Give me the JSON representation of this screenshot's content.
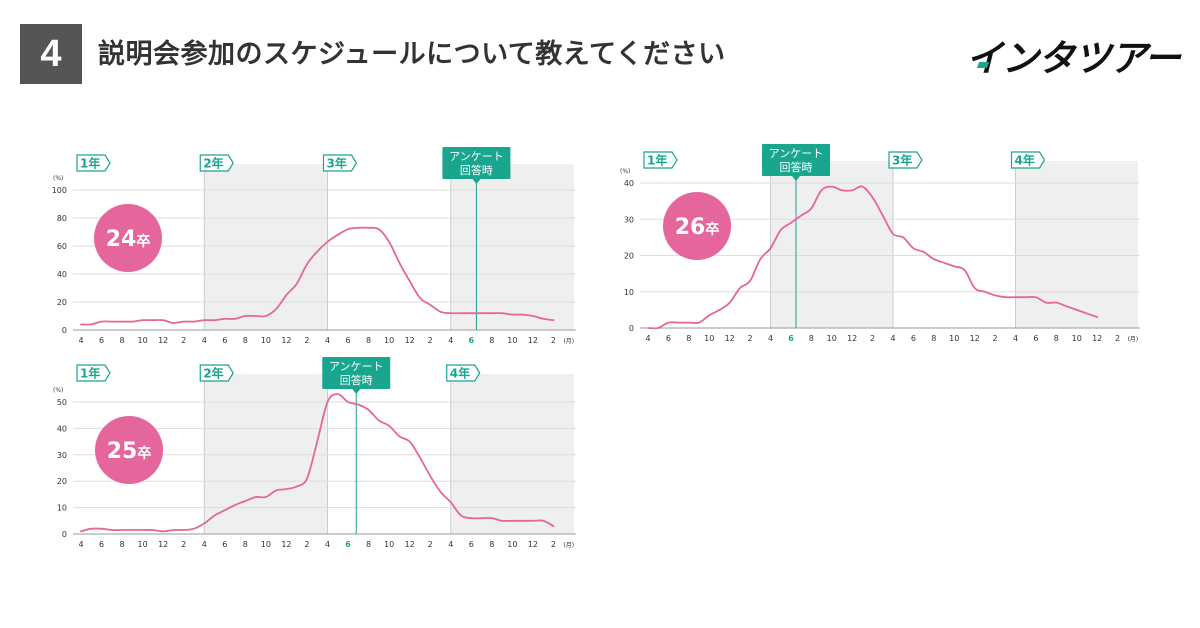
{
  "header": {
    "number": "4",
    "title": "説明会参加のスケジュールについて教えてください",
    "logo": "インタツアー"
  },
  "colors": {
    "line": "#e4669c",
    "accent": "#1aa58f",
    "badge": "#e4669c",
    "shade": "#efefef",
    "grid": "#dddddd"
  },
  "chart_data": [
    {
      "type": "line",
      "badge_num": "24",
      "badge_suffix": "卒",
      "ylabel": "(%)",
      "ylim": [
        0,
        100
      ],
      "yticks": [
        0,
        20,
        40,
        60,
        80,
        100
      ],
      "xlim": [
        0,
        48
      ],
      "x_tick_labels": [
        "4",
        "6",
        "8",
        "10",
        "12",
        "2",
        "4",
        "6",
        "8",
        "10",
        "12",
        "2",
        "4",
        "6",
        "8",
        "10",
        "12",
        "2",
        "4",
        "6",
        "8",
        "10",
        "12",
        "2"
      ],
      "x_unit": "(月)",
      "highlight_tick": 19,
      "year_labels": [
        "1年",
        "2年",
        "3年",
        "4年"
      ],
      "shaded_years": [
        1,
        3
      ],
      "annotation": {
        "line1": "アンケート",
        "line2": "回答時",
        "x": 38.5
      },
      "x": [
        0,
        1,
        2,
        3,
        4,
        5,
        6,
        7,
        8,
        9,
        10,
        11,
        12,
        13,
        14,
        15,
        16,
        17,
        18,
        19,
        20,
        21,
        22,
        23,
        24,
        25,
        26,
        27,
        28,
        29,
        30,
        31,
        32,
        33,
        34,
        35,
        36,
        37,
        38,
        39,
        40,
        41,
        42,
        43,
        44,
        45,
        46
      ],
      "y": [
        4,
        4,
        6,
        6,
        6,
        6,
        7,
        7,
        7,
        5,
        6,
        6,
        7,
        7,
        8,
        8,
        10,
        10,
        10,
        15,
        25,
        33,
        47,
        56,
        63,
        68,
        72,
        73,
        73,
        72,
        63,
        48,
        35,
        23,
        18,
        13,
        12,
        12,
        12,
        12,
        12,
        12,
        11,
        11,
        10,
        8,
        7
      ]
    },
    {
      "type": "line",
      "badge_num": "25",
      "badge_suffix": "卒",
      "ylabel": "(%)",
      "ylim": [
        0,
        50
      ],
      "yticks": [
        0,
        10,
        20,
        30,
        40,
        50
      ],
      "xlim": [
        0,
        48
      ],
      "x_tick_labels": [
        "4",
        "6",
        "8",
        "10",
        "12",
        "2",
        "4",
        "6",
        "8",
        "10",
        "12",
        "2",
        "4",
        "6",
        "8",
        "10",
        "12",
        "2",
        "4",
        "6",
        "8",
        "10",
        "12",
        "2"
      ],
      "x_unit": "(月)",
      "highlight_tick": 13,
      "year_labels": [
        "1年",
        "2年",
        "3年",
        "4年"
      ],
      "shaded_years": [
        1,
        3
      ],
      "annotation": {
        "line1": "アンケート",
        "line2": "回答時",
        "x": 26.8
      },
      "x": [
        0,
        1,
        2,
        3,
        4,
        5,
        6,
        7,
        8,
        9,
        10,
        11,
        12,
        13,
        14,
        15,
        16,
        17,
        18,
        19,
        20,
        21,
        22,
        23,
        24,
        25,
        26,
        27,
        28,
        29,
        30,
        31,
        32,
        33,
        34,
        35,
        36,
        37,
        38,
        39,
        40,
        41,
        42,
        43,
        44,
        45,
        46
      ],
      "y": [
        1,
        2,
        2,
        1.5,
        1.5,
        1.5,
        1.5,
        1.5,
        1,
        1.5,
        1.5,
        2,
        4,
        7,
        9,
        11,
        12.5,
        14,
        14,
        16.5,
        17,
        18,
        21,
        35,
        50,
        53,
        50,
        49,
        47,
        43,
        41,
        37,
        35,
        29,
        22,
        16,
        12,
        7,
        6,
        6,
        6,
        5,
        5,
        5,
        5,
        5,
        3
      ]
    },
    {
      "type": "line",
      "badge_num": "26",
      "badge_suffix": "卒",
      "ylabel": "(%)",
      "ylim": [
        0,
        40
      ],
      "yticks": [
        0,
        10,
        20,
        30,
        40
      ],
      "xlim": [
        0,
        48
      ],
      "x_tick_labels": [
        "4",
        "6",
        "8",
        "10",
        "12",
        "2",
        "4",
        "6",
        "8",
        "10",
        "12",
        "2",
        "4",
        "6",
        "8",
        "10",
        "12",
        "2",
        "4",
        "6",
        "8",
        "10",
        "12",
        "2"
      ],
      "x_unit": "(月)",
      "highlight_tick": 7,
      "year_labels": [
        "1年",
        "2年",
        "3年",
        "4年"
      ],
      "shaded_years": [
        1,
        3
      ],
      "annotation": {
        "line1": "アンケート",
        "line2": "回答時",
        "x": 14.5
      },
      "x": [
        0,
        1,
        2,
        3,
        4,
        5,
        6,
        7,
        8,
        9,
        10,
        11,
        12,
        13,
        14,
        15,
        16,
        17,
        18,
        19,
        20,
        21,
        22,
        23,
        24,
        25,
        26,
        27,
        28,
        29,
        30,
        31,
        32,
        33,
        34,
        35,
        36,
        37,
        38,
        39,
        40,
        41,
        42,
        43,
        44
      ],
      "y": [
        0,
        0,
        1.5,
        1.5,
        1.5,
        1.5,
        3.5,
        5,
        7,
        11,
        13,
        19,
        22,
        27,
        29,
        31,
        33,
        38,
        39,
        38,
        38,
        39,
        36,
        31,
        26,
        25,
        22,
        21,
        19,
        18,
        17,
        16,
        11,
        10,
        9,
        8.5,
        8.5,
        8.5,
        8.5,
        7,
        7,
        6,
        5,
        4,
        3
      ]
    }
  ]
}
